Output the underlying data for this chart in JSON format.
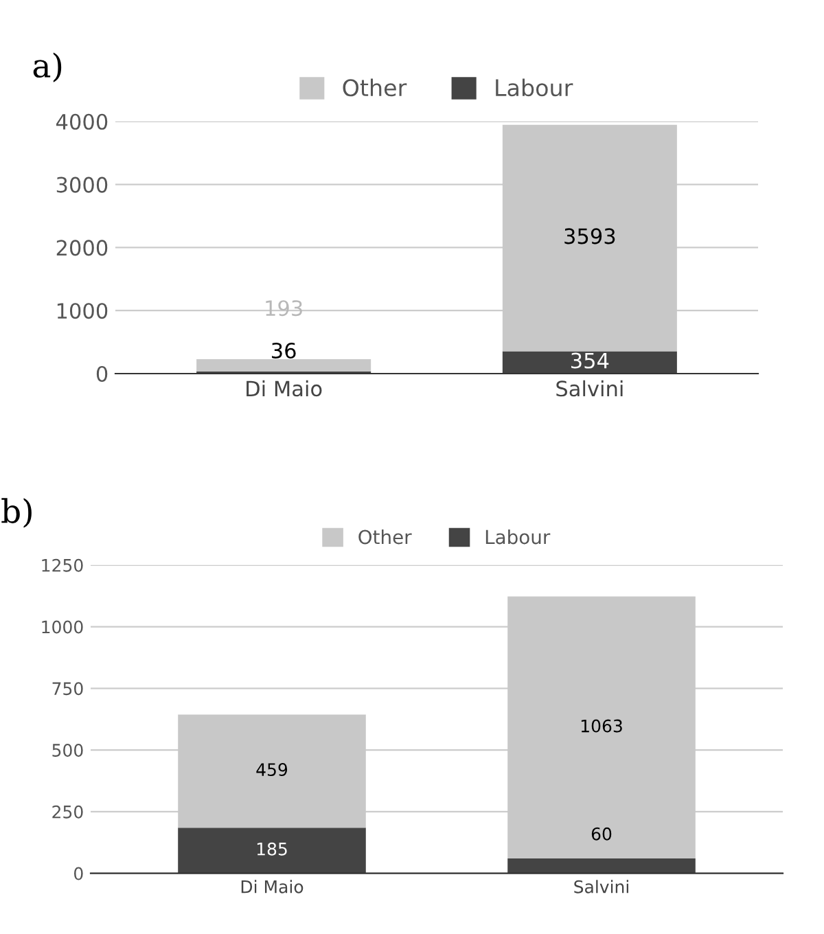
{
  "chart_data": [
    {
      "type": "bar",
      "title": "a)",
      "stacked": true,
      "categories": [
        "Di Maio",
        "Salvini"
      ],
      "series": [
        {
          "name": "Labour",
          "color": "#444444",
          "values": [
            36,
            354
          ]
        },
        {
          "name": "Other",
          "color": "#c8c8c8",
          "values": [
            193,
            3593
          ]
        }
      ],
      "ylim": [
        0,
        4000
      ],
      "yticks": [
        0,
        1000,
        2000,
        3000,
        4000
      ],
      "grid": "y",
      "legend": "top",
      "data_labels": true
    },
    {
      "type": "bar",
      "title": "b)",
      "stacked": true,
      "categories": [
        "Di Maio",
        "Salvini"
      ],
      "series": [
        {
          "name": "Labour",
          "color": "#444444",
          "values": [
            185,
            60
          ]
        },
        {
          "name": "Other",
          "color": "#c8c8c8",
          "values": [
            459,
            1063
          ]
        }
      ],
      "ylim": [
        0,
        1250
      ],
      "yticks": [
        0,
        250,
        500,
        750,
        1000,
        1250
      ],
      "grid": "y",
      "legend": "top",
      "data_labels": true
    }
  ]
}
